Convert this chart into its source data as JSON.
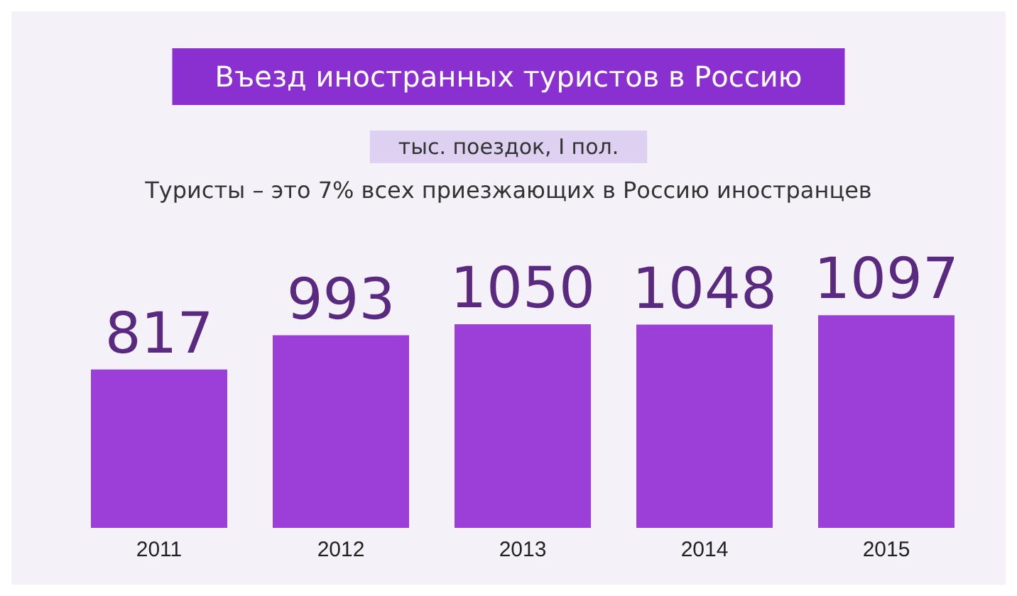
{
  "chart_data": {
    "type": "bar",
    "title": "Въезд иностранных туристов в Россию",
    "subtitle": "тыс. поездок, I пол.",
    "annotations": [
      "Туристы – это 7% всех приезжающих в Россию иностранцев"
    ],
    "categories": [
      "2011",
      "2012",
      "2013",
      "2014",
      "2015"
    ],
    "values": [
      817,
      993,
      1050,
      1048,
      1097
    ],
    "color": "#9b3fd8",
    "data_labels": true
  }
}
